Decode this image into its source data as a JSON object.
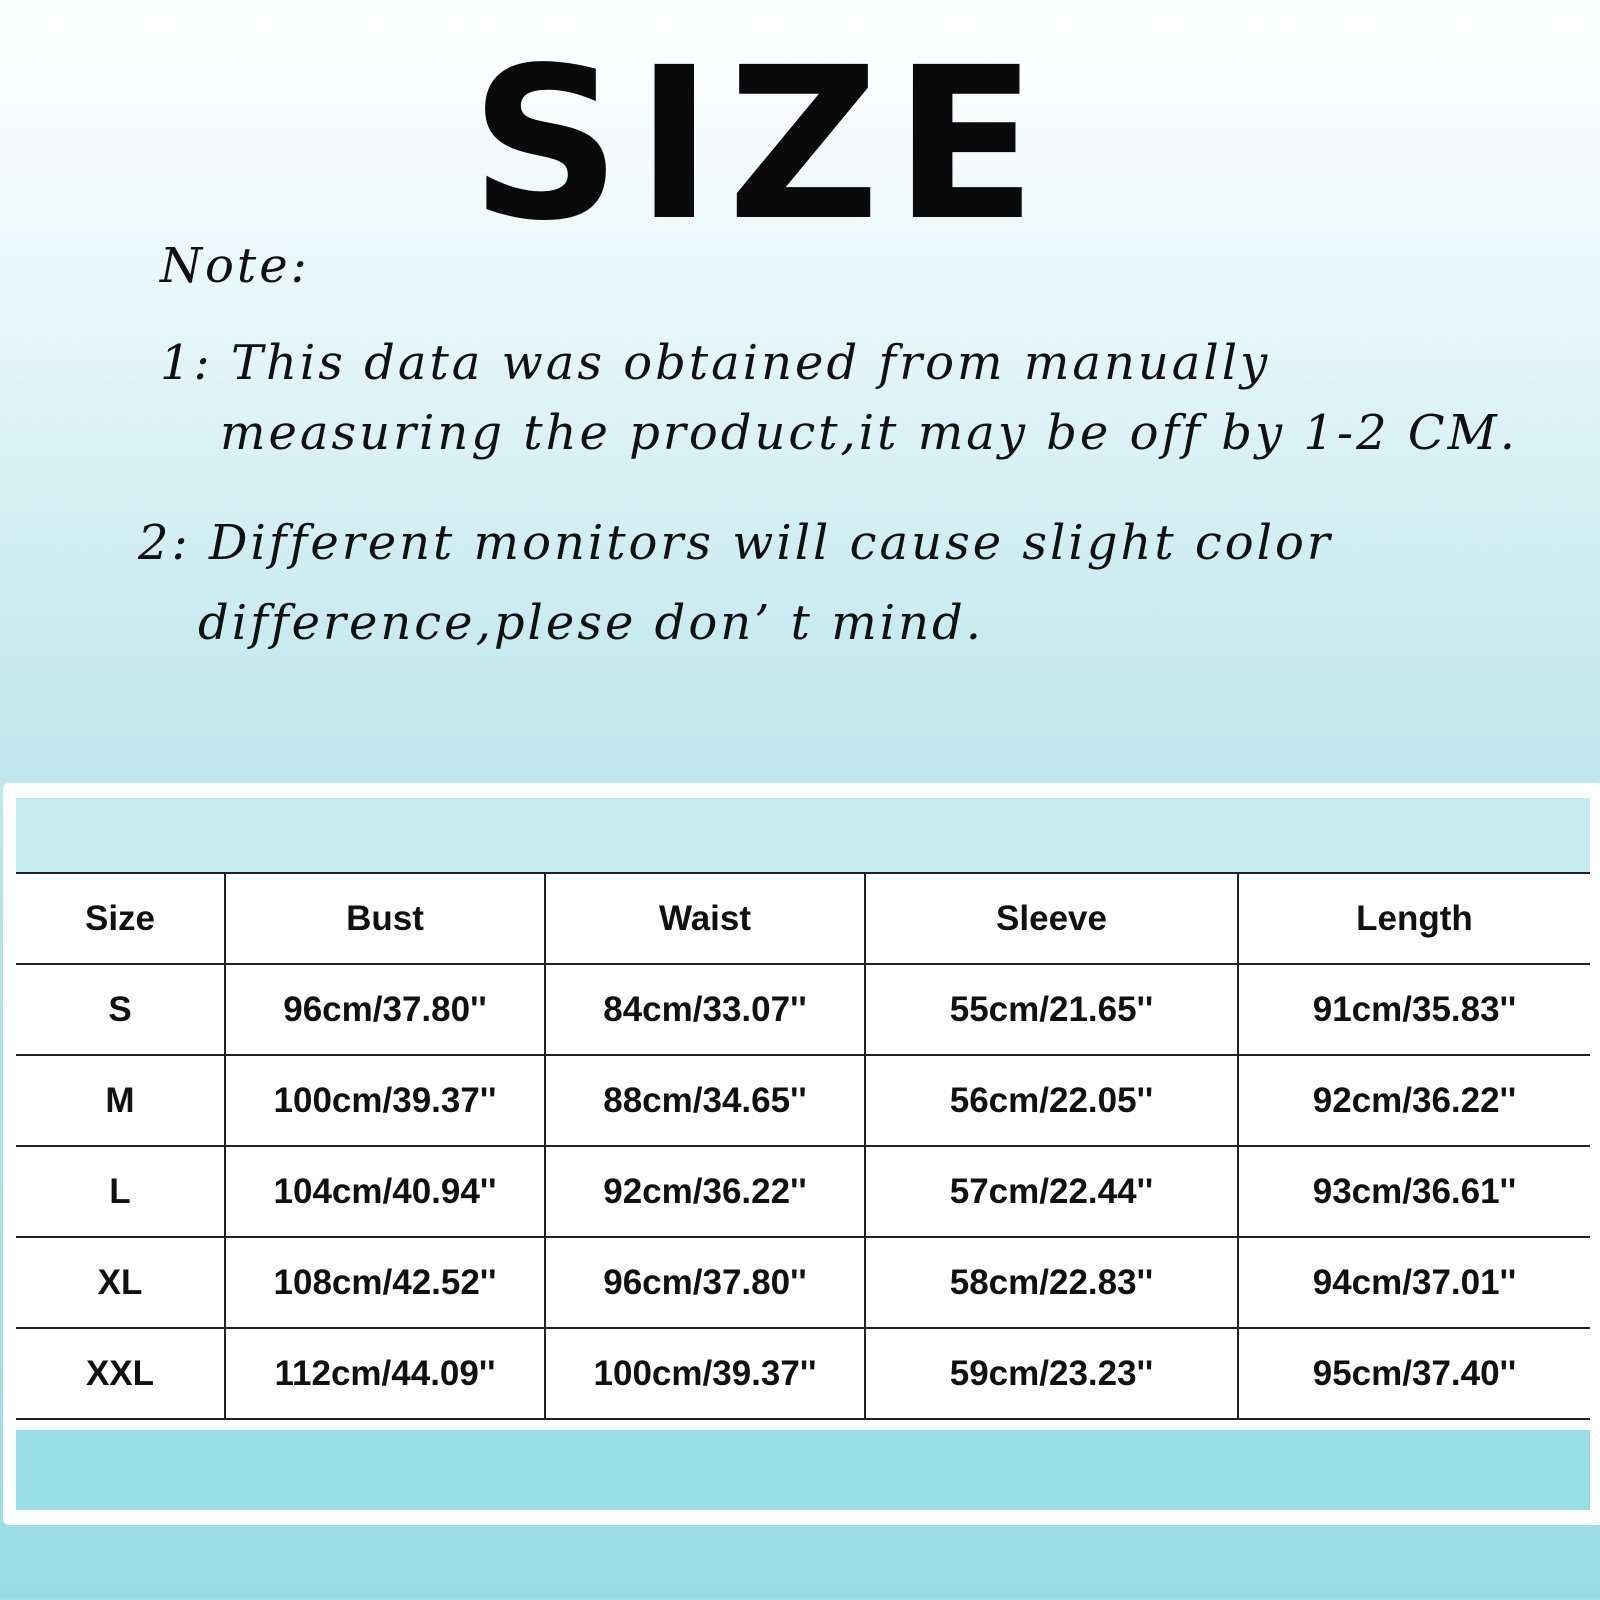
{
  "title": "SIZE",
  "note": {
    "heading": "Note:",
    "line1a": "1: This data was obtained from manually",
    "line1b": "measuring the product,it may be off by 1-2 CM.",
    "line2a": "2: Different monitors will cause slight color",
    "line2b": "difference,plese don’ t mind."
  },
  "colors": {
    "band_top": "#c5ecf1",
    "band_bottom": "#97dee6"
  },
  "table": {
    "headers": [
      "Size",
      "Bust",
      "Waist",
      "Sleeve",
      "Length"
    ],
    "rows": [
      [
        "S",
        "96cm/37.80''",
        "84cm/33.07''",
        "55cm/21.65''",
        "91cm/35.83''"
      ],
      [
        "M",
        "100cm/39.37''",
        "88cm/34.65''",
        "56cm/22.05''",
        "92cm/36.22''"
      ],
      [
        "L",
        "104cm/40.94''",
        "92cm/36.22''",
        "57cm/22.44''",
        "93cm/36.61''"
      ],
      [
        "XL",
        "108cm/42.52''",
        "96cm/37.80''",
        "58cm/22.83''",
        "94cm/37.01''"
      ],
      [
        "XXL",
        "112cm/44.09''",
        "100cm/39.37''",
        "59cm/23.23''",
        "95cm/37.40''"
      ]
    ]
  }
}
